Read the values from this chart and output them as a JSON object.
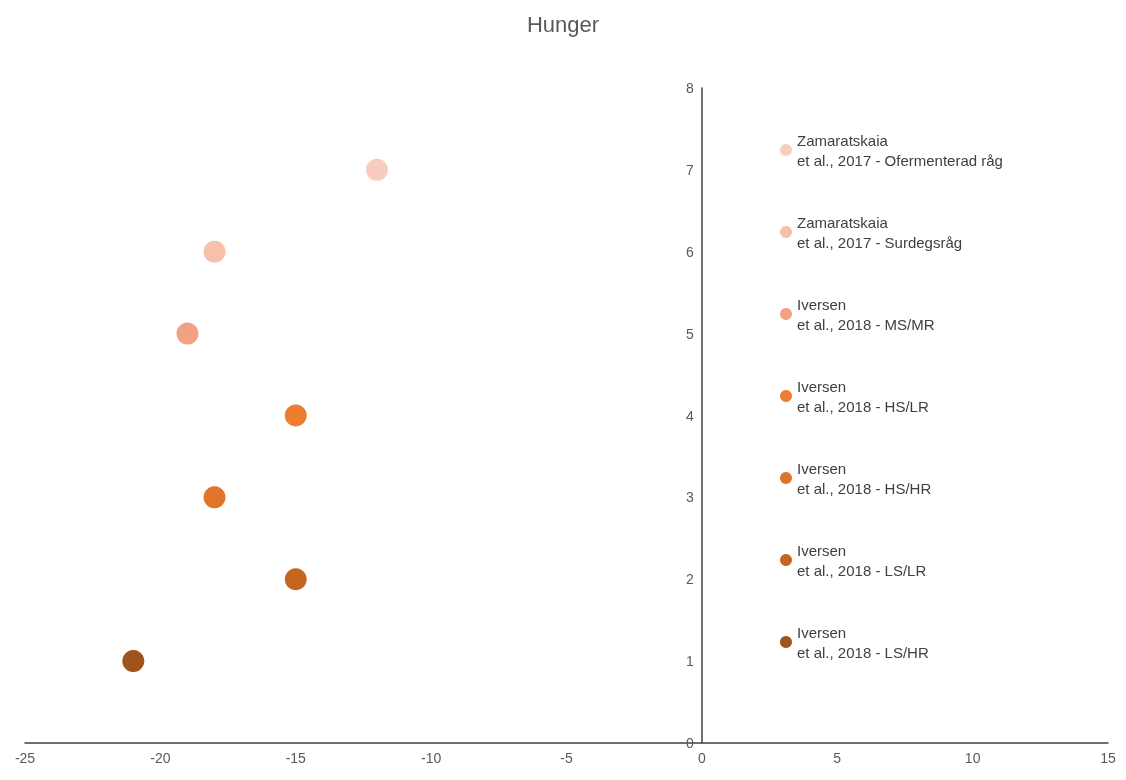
{
  "chart_data": {
    "type": "scatter",
    "title": "Hunger",
    "xlim": [
      -25,
      15
    ],
    "xticks": [
      -25,
      -20,
      -15,
      -10,
      -5,
      0,
      5,
      10,
      15
    ],
    "ylim": [
      0,
      8
    ],
    "yticks": [
      0,
      1,
      2,
      3,
      4,
      5,
      6,
      7,
      8
    ],
    "grid": false,
    "legend": "right",
    "marker": "circle",
    "series": [
      {
        "name": "Zamaratskaia et al., 2017 - Ofermenterad råg",
        "color": "#f9cdbe",
        "x": [
          -12
        ],
        "values": [
          7
        ]
      },
      {
        "name": "Zamaratskaia et al., 2017 - Surdegsråg",
        "color": "#f6c0ab",
        "x": [
          -18
        ],
        "values": [
          6
        ]
      },
      {
        "name": "Iversen et al., 2018 - MS/MR",
        "color": "#f1a283",
        "x": [
          -19
        ],
        "values": [
          5
        ]
      },
      {
        "name": "Iversen et al., 2018 - HS/LR",
        "color": "#ee7d2f",
        "x": [
          -15
        ],
        "values": [
          4
        ]
      },
      {
        "name": "Iversen et al., 2018 - HS/HR",
        "color": "#e0742a",
        "x": [
          -18
        ],
        "values": [
          3
        ]
      },
      {
        "name": "Iversen et al., 2018 - LS/LR",
        "color": "#c6651f",
        "x": [
          -15
        ],
        "values": [
          2
        ]
      },
      {
        "name": "Iversen et al., 2018 - LS/HR",
        "color": "#a0531c",
        "x": [
          -21
        ],
        "values": [
          1
        ]
      }
    ]
  }
}
